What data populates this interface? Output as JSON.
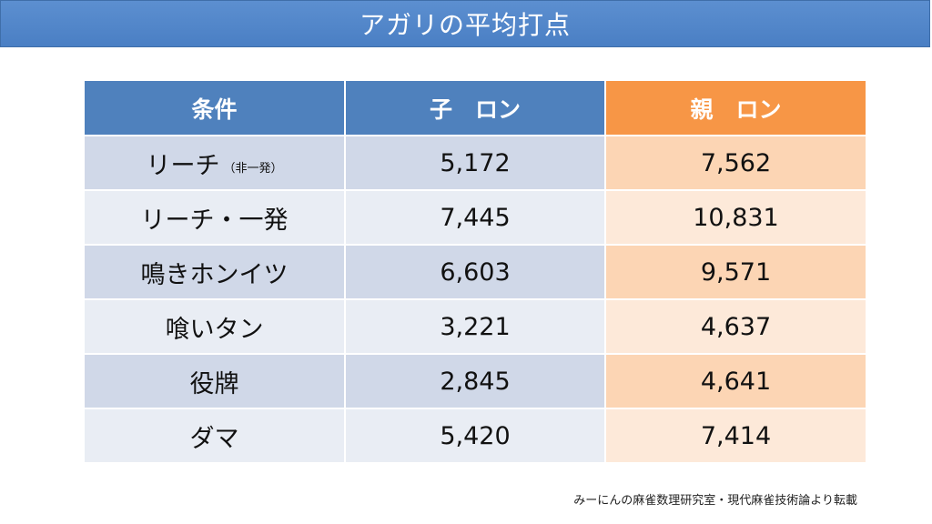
{
  "title": "アガリの平均打点",
  "table": {
    "headers": [
      "条件",
      "子　ロン",
      "親　ロン"
    ],
    "rows": [
      {
        "label": "リーチ",
        "note": "（非一発）",
        "child": "5,172",
        "dealer": "7,562"
      },
      {
        "label": "リーチ・一発",
        "note": "",
        "child": "7,445",
        "dealer": "10,831"
      },
      {
        "label": "鳴きホンイツ",
        "note": "",
        "child": "6,603",
        "dealer": "9,571"
      },
      {
        "label": "喰いタン",
        "note": "",
        "child": "3,221",
        "dealer": "4,637"
      },
      {
        "label": "役牌",
        "note": "",
        "child": "2,845",
        "dealer": "4,641"
      },
      {
        "label": "ダマ",
        "note": "",
        "child": "5,420",
        "dealer": "7,414"
      }
    ]
  },
  "source": "みーにんの麻雀数理研究室・現代麻雀技術論より転載",
  "colors": {
    "title_bg": "#4f81bd",
    "header_blue": "#4f81bd",
    "header_orange": "#f79646",
    "row_blue_dark": "#d0d8e8",
    "row_blue_light": "#e9edf4",
    "row_orange_dark": "#fcd5b4",
    "row_orange_light": "#fde9d9"
  }
}
